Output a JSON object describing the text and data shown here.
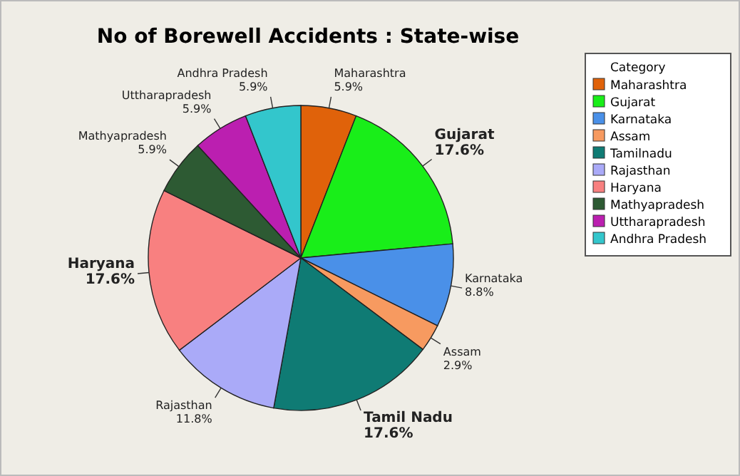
{
  "chart_data": {
    "type": "pie",
    "title": "No of Borewell Accidents : State-wise",
    "legend_title": "Category",
    "legend": "right",
    "categories": [
      "Maharashtra",
      "Gujarat",
      "Karnataka",
      "Assam",
      "Tamilnadu",
      "Rajasthan",
      "Haryana",
      "Mathyapradesh",
      "Uttharapradesh",
      "Andhra Pradesh"
    ],
    "values": [
      5.9,
      17.6,
      8.8,
      2.9,
      17.6,
      11.8,
      17.6,
      5.9,
      5.9,
      5.9
    ],
    "colors": [
      "#e0620a",
      "#19ee19",
      "#4a90e8",
      "#f79a60",
      "#0f7b74",
      "#aaaaf8",
      "#f88080",
      "#2d5a33",
      "#bb1fb0",
      "#33c6cc"
    ],
    "value_labels": [
      "Maharashtra\n5.9%",
      "Gujarat\n17.6%",
      "Karnataka\n8.8%",
      "Assam\n2.9%",
      "Tamil Nadu\n17.6%",
      "Rajasthan\n11.8%",
      "Haryana\n17.6%",
      "Mathyapradesh\n5.9%",
      "Uttharapradesh\n5.9%",
      "Andhra Pradesh\n5.9%"
    ]
  }
}
